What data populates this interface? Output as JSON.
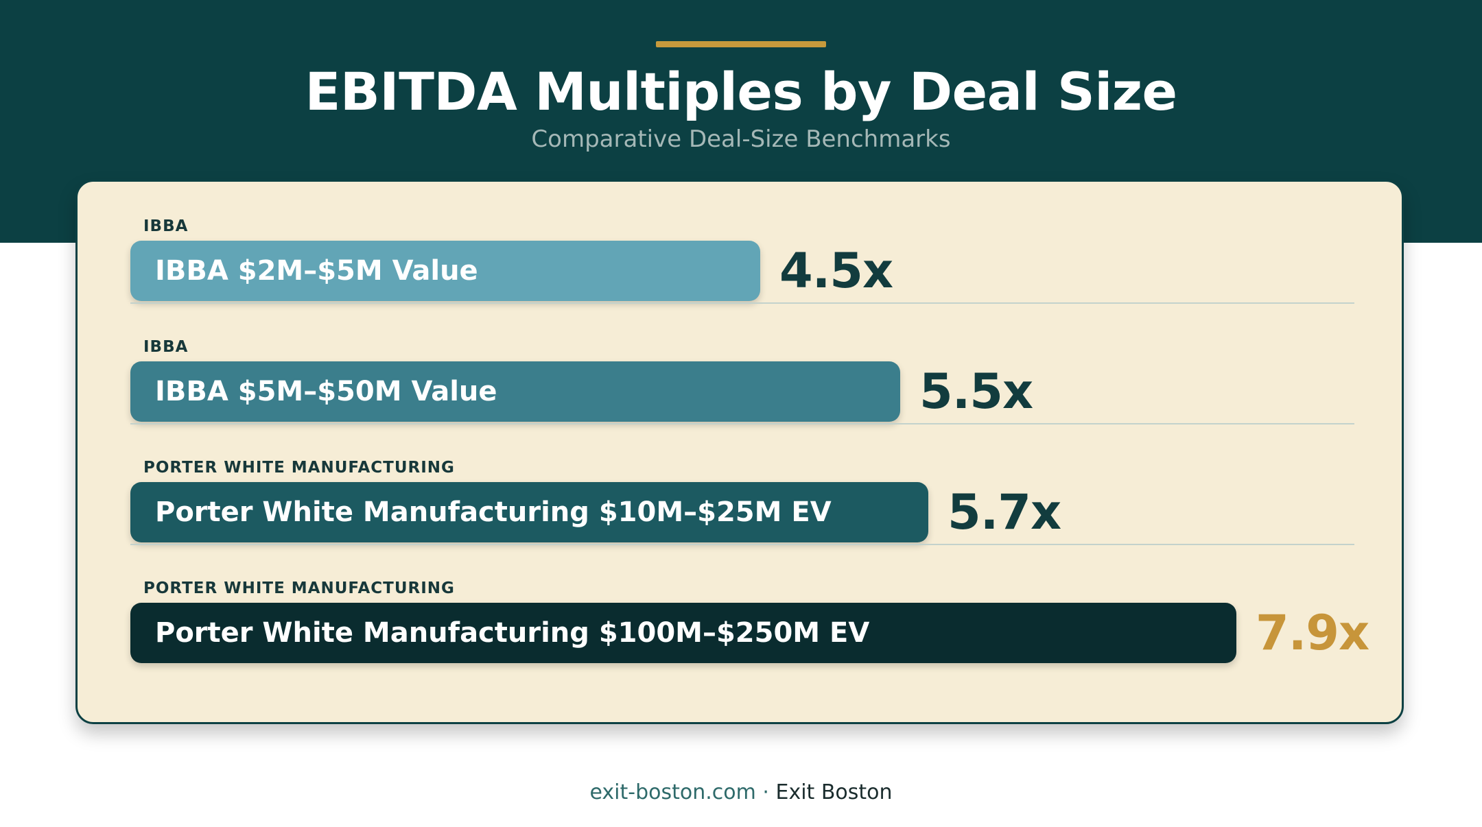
{
  "header": {
    "title": "EBITDA Multiples by Deal Size",
    "subtitle": "Comparative Deal-Size Benchmarks"
  },
  "chart_data": {
    "type": "bar",
    "orientation": "horizontal",
    "title": "EBITDA Multiples by Deal Size",
    "subtitle": "Comparative Deal-Size Benchmarks",
    "xlim": [
      0,
      7.9
    ],
    "grid": false,
    "rows": [
      {
        "group": "IBBA",
        "label": "IBBA $2M–$5M Value",
        "value": 4.5,
        "value_label": "4.5x",
        "color": "#62a5b6",
        "value_color": "#123c3e"
      },
      {
        "group": "IBBA",
        "label": "IBBA $5M–$50M Value",
        "value": 5.5,
        "value_label": "5.5x",
        "color": "#3b7e8c",
        "value_color": "#123c3e"
      },
      {
        "group": "PORTER WHITE MANUFACTURING",
        "label": "Porter White Manufacturing $10M–$25M EV",
        "value": 5.7,
        "value_label": "5.7x",
        "color": "#1c5a61",
        "value_color": "#123c3e"
      },
      {
        "group": "PORTER WHITE MANUFACTURING",
        "label": "Porter White Manufacturing $100M–$250M EV",
        "value": 7.9,
        "value_label": "7.9x",
        "color": "#0a2c2f",
        "value_color": "#c7953a"
      }
    ]
  },
  "footer": {
    "domain": "exit-boston.com",
    "separator": "·",
    "brand": "Exit Boston"
  }
}
